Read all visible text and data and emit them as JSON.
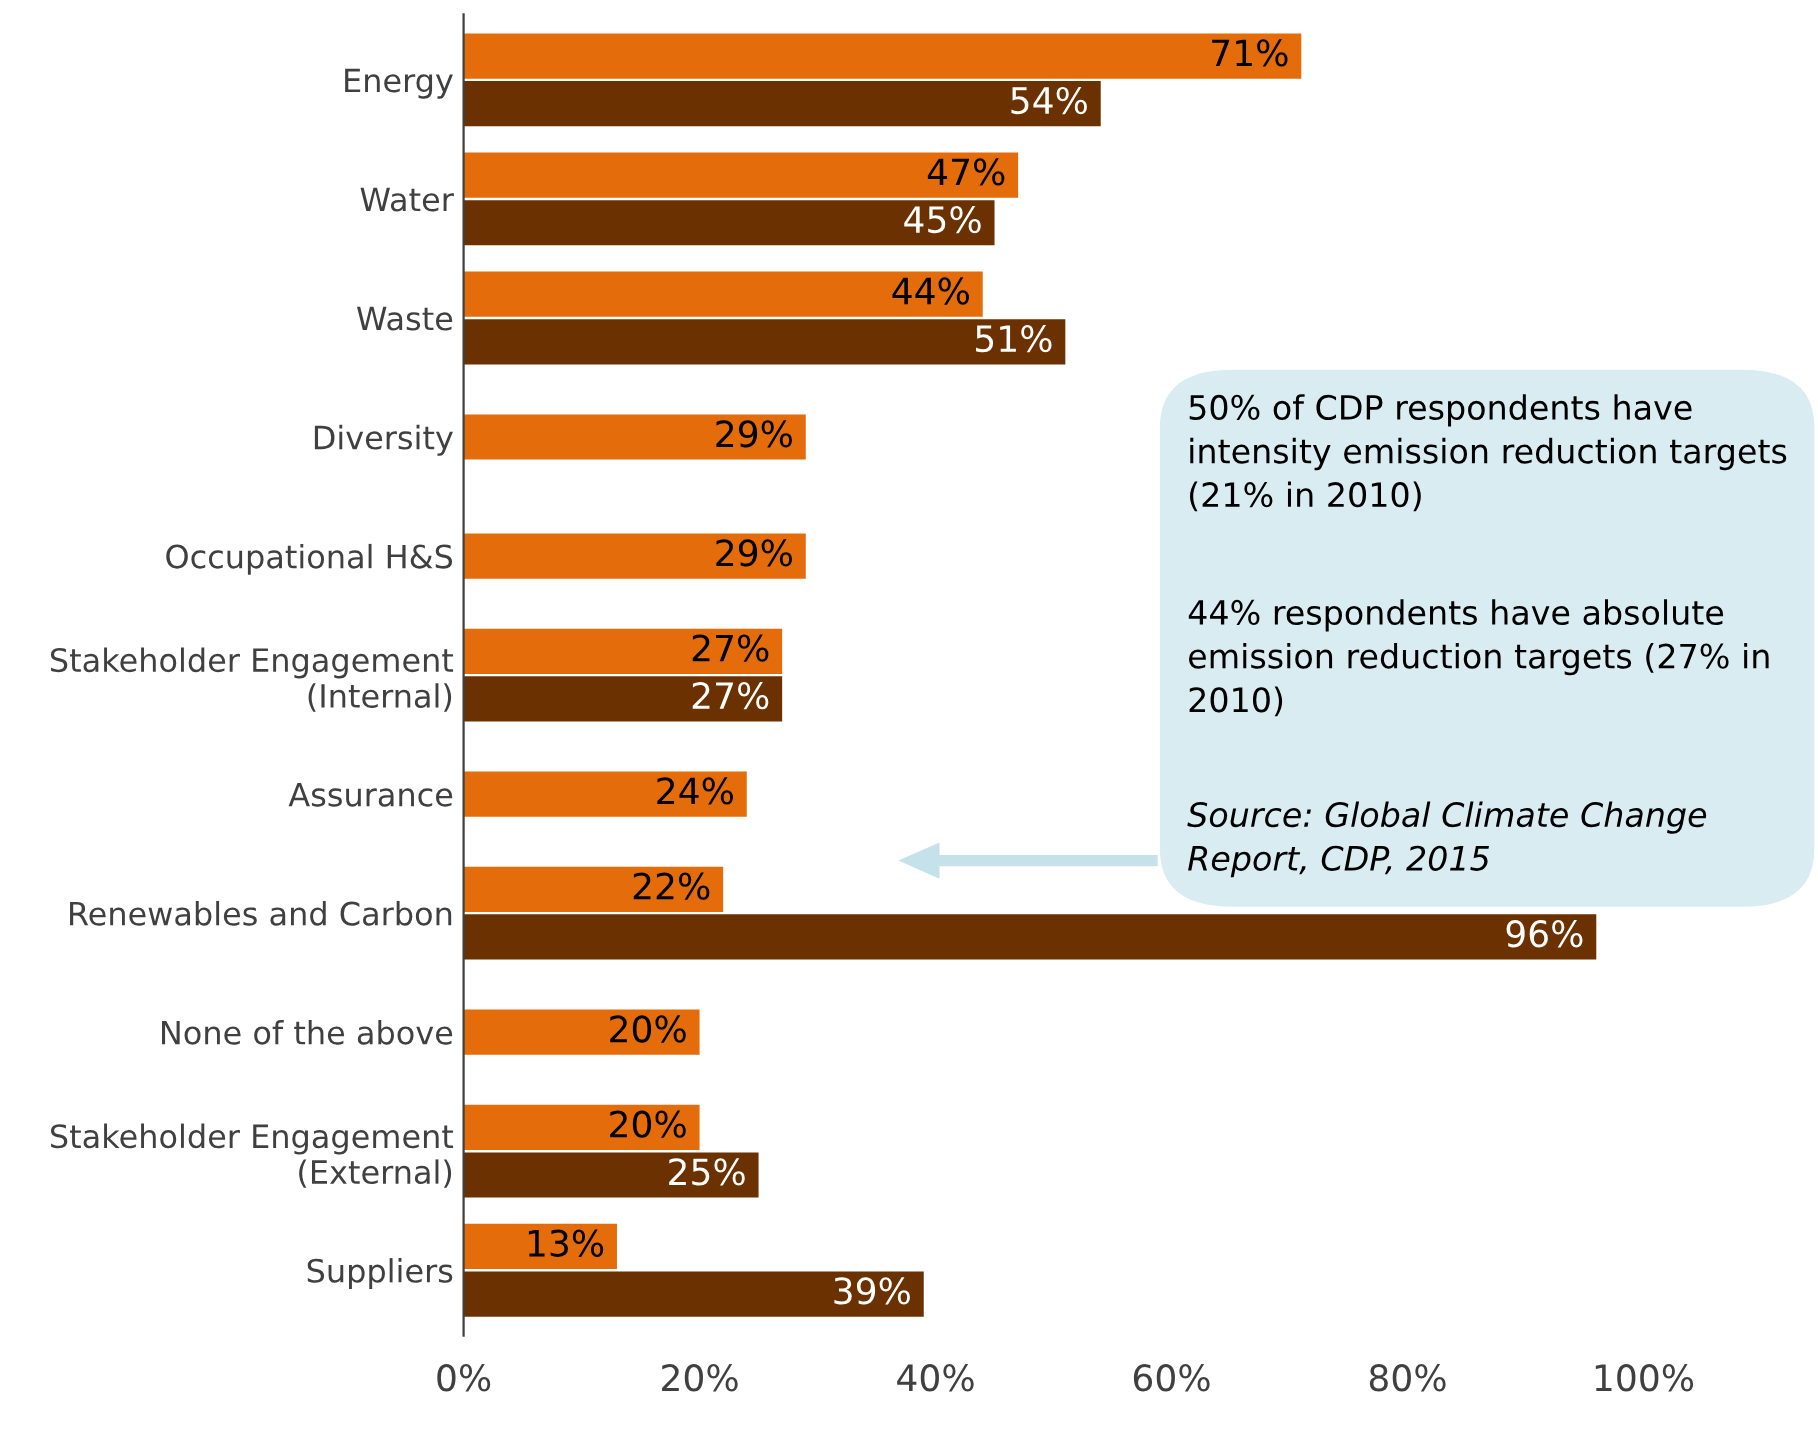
{
  "chart_data": {
    "type": "bar",
    "orientation": "horizontal",
    "categories": [
      "Energy",
      "Water",
      "Waste",
      "Diversity",
      "Occupational H&S",
      "Stakeholder Engagement\n(Internal)",
      "Assurance",
      "Renewables and Carbon",
      "None of the above",
      "Stakeholder Engagement\n(External)",
      "Suppliers"
    ],
    "series": [
      {
        "color": "#e46c0a",
        "values": [
          71,
          47,
          44,
          29,
          29,
          27,
          24,
          22,
          20,
          20,
          13
        ],
        "value_labels": [
          "71%",
          "47%",
          "44%",
          "29%",
          "29%",
          "27%",
          "24%",
          "22%",
          "20%",
          "20%",
          "13%"
        ]
      },
      {
        "color": "#6b3100",
        "values": [
          54,
          45,
          51,
          null,
          null,
          27,
          null,
          96,
          null,
          25,
          39
        ],
        "value_labels": [
          "54%",
          "45%",
          "51%",
          null,
          null,
          "27%",
          null,
          "96%",
          null,
          "25%",
          "39%"
        ]
      }
    ],
    "xlim": [
      0,
      100
    ],
    "xticks": [
      {
        "value": 0,
        "label": "0%"
      },
      {
        "value": 20,
        "label": "20%"
      },
      {
        "value": 40,
        "label": "40%"
      },
      {
        "value": 60,
        "label": "60%"
      },
      {
        "value": 80,
        "label": "80%"
      },
      {
        "value": 100,
        "label": "100%"
      }
    ],
    "grid": false,
    "legend": false,
    "annotations": [
      "50% of CDP respondents have intensity emission reduction targets (21% in 2010)",
      "44% respondents have absolute emission reduction targets (27% in 2010)",
      "Source: Global Climate Change Report, CDP, 2015"
    ]
  }
}
